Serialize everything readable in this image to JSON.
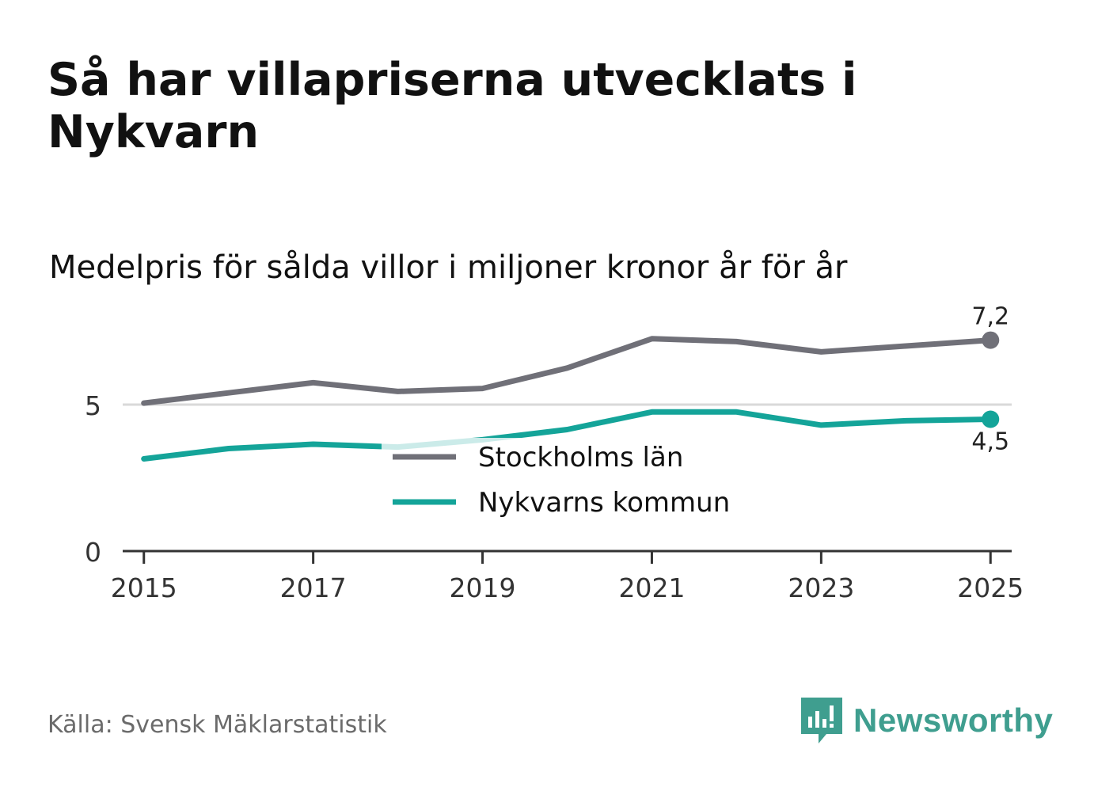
{
  "title": "Så har villapriserna utvecklats i Nykvarn",
  "subtitle": "Medelpris för sålda villor i miljoner kronor år för år",
  "source": "Källa: Svensk Mäklarstatistik",
  "brand": {
    "name": "Newsworthy",
    "icon": "newsworthy-logo-icon",
    "color": "#3f9e8f"
  },
  "chart_data": {
    "type": "line",
    "x": [
      2015,
      2016,
      2017,
      2018,
      2019,
      2020,
      2021,
      2022,
      2023,
      2024,
      2025
    ],
    "x_ticks": [
      2015,
      2017,
      2019,
      2021,
      2023,
      2025
    ],
    "y_ticks": [
      0,
      5
    ],
    "ylim": [
      0,
      8
    ],
    "xlim": [
      2014.75,
      2025.25
    ],
    "series": [
      {
        "name": "Stockholms län",
        "color": "#707078",
        "values": [
          5.05,
          5.4,
          5.75,
          5.45,
          5.55,
          6.25,
          7.25,
          7.15,
          6.8,
          7.0,
          7.2
        ],
        "end_label": "7,2"
      },
      {
        "name": "Nykvarns kommun",
        "color": "#14a499",
        "values": [
          3.15,
          3.5,
          3.65,
          3.55,
          3.8,
          4.15,
          4.75,
          4.75,
          4.3,
          4.45,
          4.5
        ],
        "end_label": "4,5"
      }
    ],
    "legend": [
      "Stockholms län",
      "Nykvarns kommun"
    ],
    "gridline_color": "#d9d9d9",
    "axis_color": "#333333"
  }
}
